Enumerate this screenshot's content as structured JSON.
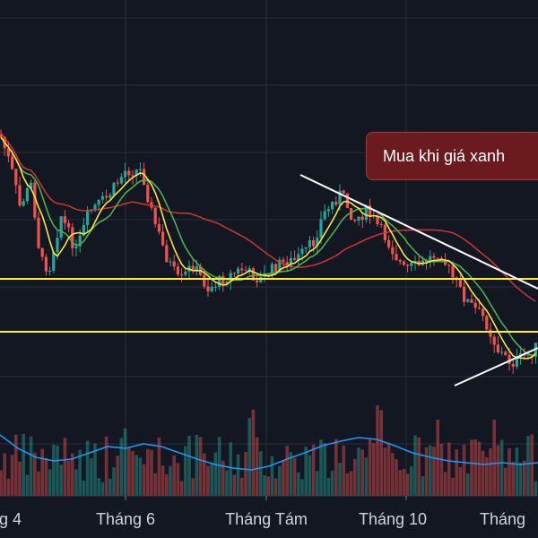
{
  "callout": {
    "text": "Mua khi giá xanh"
  },
  "x_axis": {
    "labels": [
      "g 4",
      "Tháng 6",
      "Tháng Tám",
      "Tháng 10",
      "Tháng"
    ]
  },
  "colors": {
    "background": "#131722",
    "grid": "#2a2e39",
    "up": "#26a69a",
    "down": "#ef5350",
    "support_line": "#ffeb3b",
    "ma_fast": "#f5e642",
    "ma_mid": "#4caf50",
    "ma_slow": "#e53935",
    "volume_ma": "#2196f3",
    "trendline": "#ffffff",
    "callout_bg": "#6b1a1d"
  },
  "icons": []
}
